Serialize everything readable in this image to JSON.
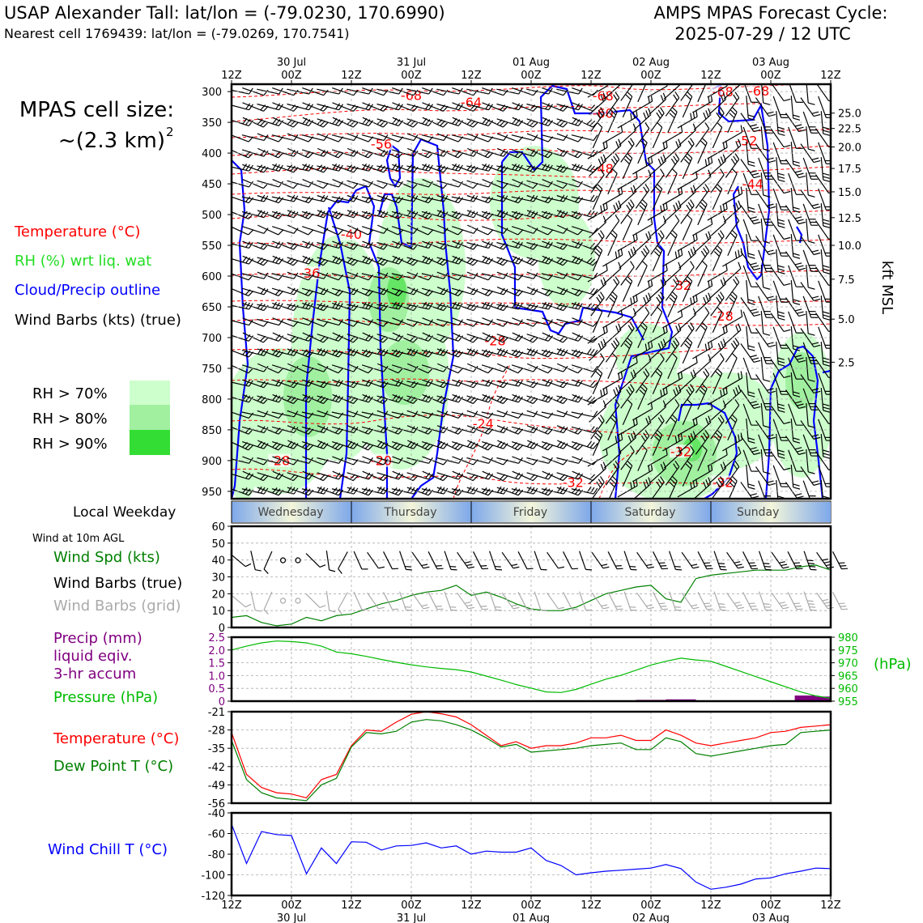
{
  "header": {
    "station": "USAP Alexander Tall: lat/lon = (-79.0230, 170.6990)",
    "nearest": "Nearest cell 1769439: lat/lon = (-79.0269, 170.7541)",
    "cycle_title": "AMPS MPAS Forecast Cycle:",
    "cycle_time": "2025-07-29 / 12 UTC"
  },
  "colors": {
    "temperature": "#ff0000",
    "rh": "#22dd22",
    "cloud": "#0000ff",
    "wind": "#000000",
    "wind_grid": "#aaaaaa",
    "wind_speed": "#008000",
    "precip": "#800080",
    "pressure": "#00bb00",
    "dewpoint": "#008000",
    "wind_chill": "#0000ff",
    "rh70": "#ccffcc",
    "rh80": "#a0f0a0",
    "rh90": "#33dd33"
  },
  "legend": {
    "cell_size_line1": "MPAS cell size:",
    "cell_size_line2": "~(2.3 km)",
    "cell_size_sup": "2",
    "temperature": "Temperature (°C)",
    "rh": "RH (%) wrt liq. wat",
    "cloud": "Cloud/Precip outline",
    "wind": "Wind Barbs (kts) (true)",
    "rh70": "RH > 70%",
    "rh80": "RH > 80%",
    "rh90": "RH > 90%",
    "weekday_title": "Local Weekday",
    "wind_10m": "Wind at 10m AGL",
    "wind_spd": "Wind Spd (kts)",
    "wind_barbs_true": "Wind Barbs (true)",
    "wind_barbs_grid": "Wind Barbs (grid)",
    "precip1": "Precip (mm)",
    "precip2": "liquid eqiv.",
    "precip3": "3-hr accum",
    "pressure": "Pressure (hPa)",
    "pressure_unit": "(hPa)",
    "temp2": "Temperature (°C)",
    "dewpoint": "Dew Point T (°C)",
    "windchill": "Wind Chill T (°C)",
    "kft": "kft MSL"
  },
  "time_axis": {
    "hours": [
      "12Z",
      "00Z",
      "12Z",
      "00Z",
      "12Z",
      "00Z",
      "12Z",
      "00Z",
      "12Z",
      "00Z",
      "12Z"
    ],
    "dates": [
      "",
      "30 Jul",
      "",
      "31 Jul",
      "",
      "01 Aug",
      "",
      "02 Aug",
      "",
      "03 Aug",
      ""
    ]
  },
  "weekdays": [
    "Wednesday",
    "Thursday",
    "Friday",
    "Saturday",
    "Sunday"
  ],
  "chart_data": [
    {
      "type": "heatmap",
      "title": "",
      "ylabel_right": "kft MSL",
      "y_pressure_ticks": [
        300,
        350,
        400,
        450,
        500,
        550,
        600,
        650,
        700,
        750,
        800,
        850,
        900,
        950
      ],
      "y_kft_ticks": [
        25.0,
        22.5,
        20.0,
        17.5,
        15.0,
        12.5,
        10.0,
        7.5,
        5.0,
        2.5
      ],
      "y_kft_pressure": [
        335,
        360,
        390,
        425,
        463,
        505,
        550,
        605,
        670,
        740
      ],
      "temperature_contour_labels": [
        {
          "label": "-68",
          "t": 1.5,
          "p": 311
        },
        {
          "label": "-64",
          "t": 2.0,
          "p": 322
        },
        {
          "label": "-68",
          "t": 3.1,
          "p": 312
        },
        {
          "label": "-60",
          "t": 3.1,
          "p": 340
        },
        {
          "label": "-68",
          "t": 4.1,
          "p": 305
        },
        {
          "label": "-68",
          "t": 4.4,
          "p": 304
        },
        {
          "label": "-56",
          "t": 1.25,
          "p": 390
        },
        {
          "label": "-52",
          "t": 4.3,
          "p": 385
        },
        {
          "label": "-48",
          "t": 3.1,
          "p": 430
        },
        {
          "label": "-44",
          "t": 4.35,
          "p": 455
        },
        {
          "label": "-40",
          "t": 1.0,
          "p": 537
        },
        {
          "label": "-36",
          "t": 0.65,
          "p": 600
        },
        {
          "label": "-32",
          "t": 3.75,
          "p": 620
        },
        {
          "label": "-28",
          "t": 4.1,
          "p": 670
        },
        {
          "label": "-28",
          "t": 2.2,
          "p": 710
        },
        {
          "label": "-24",
          "t": 2.1,
          "p": 845
        },
        {
          "label": "-28",
          "t": 0.4,
          "p": 905
        },
        {
          "label": "-20",
          "t": 1.25,
          "p": 905
        },
        {
          "label": "-32",
          "t": 2.85,
          "p": 940
        },
        {
          "label": "-32",
          "t": 3.75,
          "p": 890
        },
        {
          "label": "-32",
          "t": 4.1,
          "p": 940
        }
      ]
    },
    {
      "type": "line",
      "title": "Wind at 10m AGL",
      "ylabel": "Wind Spd (kts)",
      "ylim": [
        0,
        60
      ],
      "yticks": [
        0,
        10,
        20,
        30,
        40,
        50,
        60
      ],
      "x_days": [
        0,
        0.125,
        0.25,
        0.375,
        0.5,
        0.625,
        0.75,
        0.875,
        1,
        1.125,
        1.25,
        1.375,
        1.5,
        1.625,
        1.75,
        1.875,
        2,
        2.125,
        2.25,
        2.375,
        2.5,
        2.625,
        2.75,
        2.875,
        3,
        3.125,
        3.25,
        3.375,
        3.5,
        3.625,
        3.75,
        3.875,
        4,
        4.125,
        4.25,
        4.375,
        4.5,
        4.625,
        4.75,
        4.875,
        5
      ],
      "series": [
        {
          "name": "Wind Spd (kts)",
          "values": [
            6,
            7,
            3,
            1,
            2,
            6,
            4,
            7,
            8,
            11,
            14,
            16,
            19,
            21,
            22,
            25,
            19,
            21,
            18,
            14,
            11,
            10,
            10,
            12,
            16,
            20,
            22,
            24,
            25,
            17,
            15,
            29,
            31,
            32,
            33,
            34,
            34,
            34,
            36,
            37,
            34
          ]
        }
      ]
    },
    {
      "type": "line",
      "title": "",
      "ylabel": "Precip (mm)",
      "ylim": [
        0,
        2.5
      ],
      "yticks": [
        0,
        0.5,
        1.0,
        1.5,
        2.0,
        2.5
      ],
      "ylabel_right": "(hPa)",
      "ylim_right": [
        955,
        980
      ],
      "yticks_right": [
        955,
        960,
        965,
        970,
        975,
        980
      ],
      "x_days": [
        0,
        0.125,
        0.25,
        0.375,
        0.5,
        0.625,
        0.75,
        0.875,
        1,
        1.125,
        1.25,
        1.375,
        1.5,
        1.625,
        1.75,
        1.875,
        2,
        2.125,
        2.25,
        2.375,
        2.5,
        2.625,
        2.75,
        2.875,
        3,
        3.125,
        3.25,
        3.375,
        3.5,
        3.625,
        3.75,
        3.875,
        4,
        4.125,
        4.25,
        4.375,
        4.5,
        4.625,
        4.75,
        4.875,
        5
      ],
      "series": [
        {
          "name": "Pressure (hPa)",
          "values": [
            975.0,
            976.5,
            977.8,
            978.5,
            978.3,
            977.8,
            976.5,
            974.2,
            973.5,
            972.5,
            971.3,
            970.2,
            969.2,
            968.4,
            967.8,
            967.3,
            966.4,
            964.8,
            963.2,
            961.5,
            960.1,
            958.6,
            958.4,
            959.6,
            961.6,
            963.6,
            965.1,
            967.1,
            969.1,
            970.6,
            971.8,
            971.1,
            970.6,
            968.6,
            966.6,
            964.6,
            962.6,
            960.6,
            958.6,
            957.1,
            956.1
          ]
        }
      ],
      "bars": [
        {
          "name": "Precip (mm)",
          "x_start": [
            3.375,
            3.625,
            4.125,
            4.7,
            4.875
          ],
          "x_end": [
            3.625,
            3.875,
            4.375,
            4.875,
            5
          ],
          "values": [
            0.05,
            0.07,
            0.03,
            0.22,
            0.18
          ]
        }
      ]
    },
    {
      "type": "line",
      "title": "",
      "ylabel": "Temperature (°C)",
      "ylim": [
        -56,
        -21
      ],
      "yticks": [
        -56,
        -49,
        -42,
        -35,
        -28,
        -21
      ],
      "x_days": [
        0,
        0.125,
        0.25,
        0.375,
        0.5,
        0.625,
        0.75,
        0.875,
        1,
        1.125,
        1.25,
        1.375,
        1.5,
        1.625,
        1.75,
        1.875,
        2,
        2.125,
        2.25,
        2.375,
        2.5,
        2.625,
        2.75,
        2.875,
        3,
        3.125,
        3.25,
        3.375,
        3.5,
        3.625,
        3.75,
        3.875,
        4,
        4.125,
        4.25,
        4.375,
        4.5,
        4.625,
        4.75,
        4.875,
        5
      ],
      "series": [
        {
          "name": "Temperature (°C)",
          "values": [
            -29,
            -45,
            -50,
            -52,
            -52.5,
            -54,
            -47,
            -45,
            -34,
            -28,
            -28.5,
            -25,
            -22,
            -21,
            -21.8,
            -23,
            -26,
            -30,
            -34,
            -32.5,
            -35,
            -34,
            -34,
            -33,
            -31,
            -31,
            -30,
            -32,
            -32,
            -28,
            -30,
            -33,
            -34,
            -33,
            -32,
            -31,
            -29,
            -28.5,
            -27,
            -26.5,
            -26
          ]
        },
        {
          "name": "Dew Point T (°C)",
          "values": [
            -32,
            -47,
            -52,
            -54,
            -54.5,
            -55,
            -49,
            -46.5,
            -34.5,
            -29,
            -29.5,
            -28.5,
            -25,
            -24,
            -24.5,
            -26,
            -28,
            -31,
            -34.5,
            -33.5,
            -36.5,
            -36,
            -35.5,
            -35,
            -34,
            -33.5,
            -33,
            -35.5,
            -35.5,
            -31,
            -32.5,
            -37,
            -38,
            -37,
            -36,
            -35,
            -34,
            -33.5,
            -29,
            -28.5,
            -28
          ]
        }
      ]
    },
    {
      "type": "line",
      "title": "",
      "ylabel": "Wind Chill T (°C)",
      "ylim": [
        -120,
        -40
      ],
      "yticks": [
        -120,
        -100,
        -80,
        -60,
        -40
      ],
      "x_days": [
        0,
        0.125,
        0.25,
        0.375,
        0.5,
        0.625,
        0.75,
        0.875,
        1,
        1.125,
        1.25,
        1.375,
        1.5,
        1.625,
        1.75,
        1.875,
        2,
        2.125,
        2.25,
        2.375,
        2.5,
        2.625,
        2.75,
        2.875,
        3,
        3.125,
        3.25,
        3.375,
        3.5,
        3.625,
        3.75,
        3.875,
        4,
        4.125,
        4.25,
        4.375,
        4.5,
        4.625,
        4.75,
        4.875,
        5
      ],
      "series": [
        {
          "name": "Wind Chill T (°C)",
          "values": [
            -51,
            -89,
            -58,
            -61,
            -62,
            -99,
            -74,
            -89,
            -68,
            -68.5,
            -76,
            -72,
            -71.5,
            -69,
            -74,
            -72,
            -80,
            -77,
            -78,
            -78,
            -74,
            -86,
            -91,
            -100,
            -98,
            -96.5,
            -95.5,
            -94.5,
            -93.5,
            -90,
            -94,
            -107,
            -114,
            -112,
            -109,
            -104,
            -103,
            -99,
            -96.5,
            -93.5,
            -94
          ]
        }
      ]
    }
  ]
}
